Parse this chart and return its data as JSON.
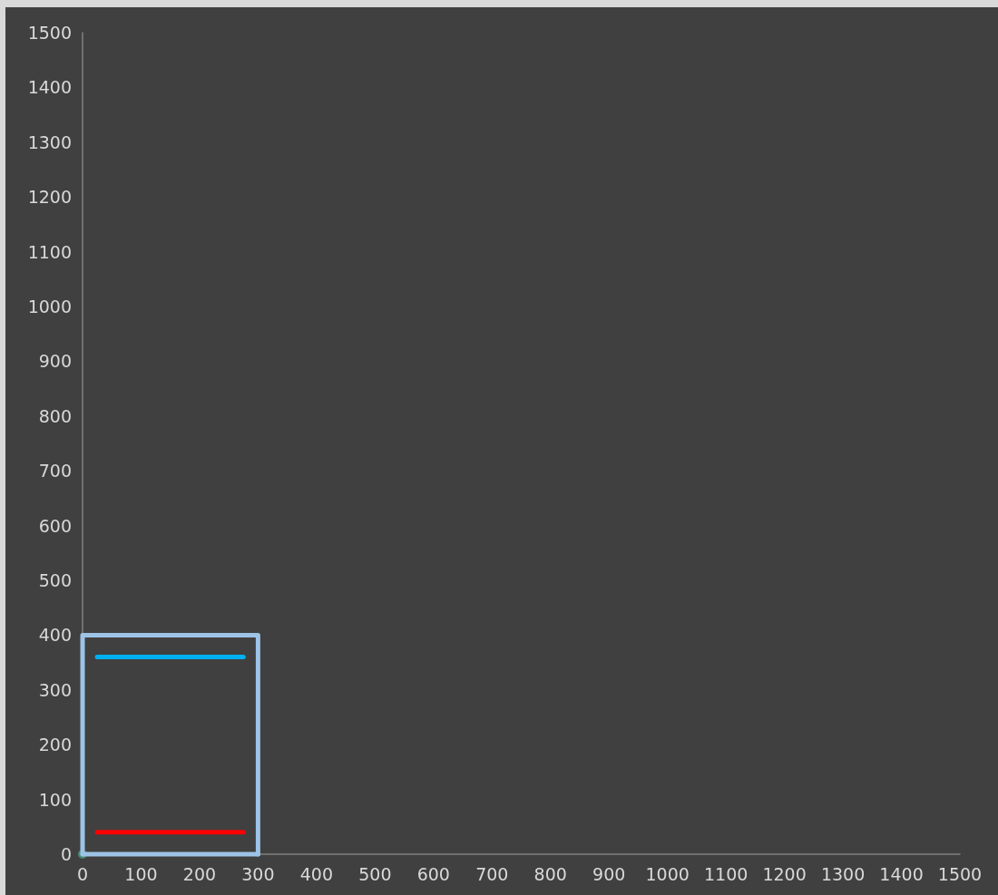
{
  "chart_data": {
    "type": "line",
    "marker": "none",
    "line_style": "solid",
    "grid": false,
    "xlim": [
      0,
      1500
    ],
    "xticks": [
      0,
      100,
      200,
      300,
      400,
      500,
      600,
      700,
      800,
      900,
      1000,
      1100,
      1200,
      1300,
      1400,
      1500
    ],
    "ylim": [
      0,
      1500
    ],
    "yticks": [
      0,
      100,
      200,
      300,
      400,
      500,
      600,
      700,
      800,
      900,
      1000,
      1100,
      1200,
      1300,
      1400,
      1500
    ],
    "series": [
      {
        "color": "#9dc3e6",
        "x": [
          0,
          0,
          300,
          300
        ],
        "values": [
          0,
          400,
          400,
          0
        ]
      },
      {
        "color": "#9dc3e6",
        "x": [
          300,
          0
        ],
        "values": [
          0,
          0
        ]
      },
      {
        "color": "#00b0f0",
        "x": [
          25,
          275
        ],
        "values": [
          360,
          360
        ]
      },
      {
        "color": "#ff0000",
        "x": [
          25,
          275
        ],
        "values": [
          40,
          40
        ]
      },
      {
        "type": "scatter",
        "marker": "circle",
        "color": "#4a9a80",
        "x": [
          0
        ],
        "values": [
          0
        ]
      }
    ]
  }
}
